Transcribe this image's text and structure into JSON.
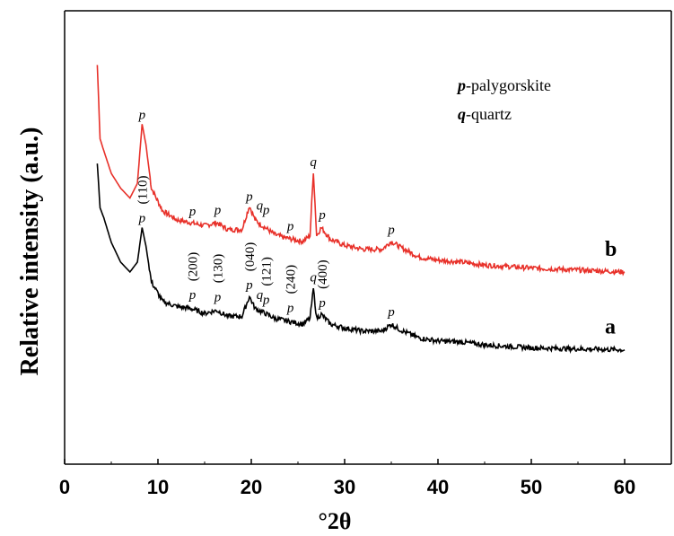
{
  "chart_data": {
    "type": "line",
    "xlabel": "°2θ",
    "ylabel": "Relative intensity (a.u.)",
    "xlim": [
      0,
      65
    ],
    "x_ticks": [
      "0",
      "10",
      "20",
      "30",
      "40",
      "50",
      "60"
    ],
    "grid": false,
    "legend": {
      "placement": "top-right",
      "entries": [
        {
          "key": "p",
          "text": "-palygorskite"
        },
        {
          "key": "q",
          "text": "-quartz"
        }
      ]
    },
    "series": [
      {
        "name": "b",
        "color": "#e8312a",
        "x": [
          3.5,
          3.8,
          4.2,
          5.0,
          6.0,
          7.0,
          7.8,
          8.3,
          8.7,
          9.3,
          10.5,
          12.0,
          13.5,
          15.0,
          16.3,
          17.5,
          19.0,
          19.8,
          20.4,
          21.0,
          21.5,
          22.5,
          23.5,
          24.5,
          25.5,
          26.3,
          26.65,
          27.0,
          27.5,
          28.5,
          30.0,
          32.0,
          34.0,
          35.0,
          36.0,
          38.0,
          40.0,
          42.5,
          45.0,
          50.0,
          55.0,
          60.0
        ],
        "values": [
          405,
          330,
          318,
          295,
          280,
          270,
          285,
          345,
          325,
          280,
          257,
          248,
          245,
          242,
          245,
          238,
          238,
          262,
          248,
          243,
          240,
          233,
          230,
          228,
          226,
          232,
          297,
          232,
          240,
          228,
          222,
          218,
          218,
          226,
          220,
          210,
          207,
          205,
          202,
          199,
          197,
          195
        ]
      },
      {
        "name": "a",
        "color": "#000000",
        "x": [
          3.5,
          3.8,
          4.2,
          5.0,
          6.0,
          7.0,
          7.8,
          8.3,
          8.7,
          9.3,
          10.5,
          12.0,
          13.5,
          15.0,
          16.3,
          17.5,
          19.0,
          19.8,
          20.4,
          21.0,
          21.5,
          22.5,
          23.5,
          24.5,
          25.5,
          26.3,
          26.65,
          27.0,
          27.5,
          28.5,
          30.0,
          32.0,
          34.0,
          35.0,
          36.0,
          38.0,
          40.0,
          42.5,
          45.0,
          50.0,
          55.0,
          60.0
        ],
        "values": [
          305,
          260,
          250,
          225,
          205,
          195,
          205,
          240,
          222,
          185,
          165,
          160,
          158,
          153,
          156,
          150,
          150,
          170,
          158,
          155,
          153,
          148,
          146,
          144,
          142,
          148,
          178,
          148,
          152,
          142,
          138,
          135,
          135,
          142,
          136,
          128,
          125,
          124,
          121,
          118,
          117,
          116
        ]
      }
    ],
    "peak_labels_b": [
      {
        "x": 8.3,
        "y": 345,
        "text": "p"
      },
      {
        "x": 13.7,
        "y": 247,
        "text": "p"
      },
      {
        "x": 16.4,
        "y": 248,
        "text": "p"
      },
      {
        "x": 19.8,
        "y": 262,
        "text": "p"
      },
      {
        "x": 20.9,
        "y": 253,
        "text": "q"
      },
      {
        "x": 21.6,
        "y": 248,
        "text": "p"
      },
      {
        "x": 24.2,
        "y": 232,
        "text": "p"
      },
      {
        "x": 26.65,
        "y": 297,
        "text": "q"
      },
      {
        "x": 27.6,
        "y": 243,
        "text": "p"
      },
      {
        "x": 35.0,
        "y": 228,
        "text": "p"
      }
    ],
    "peak_labels_a": [
      {
        "x": 8.3,
        "y": 240,
        "text": "p"
      },
      {
        "x": 13.7,
        "y": 162,
        "text": "p"
      },
      {
        "x": 16.4,
        "y": 160,
        "text": "p"
      },
      {
        "x": 19.8,
        "y": 172,
        "text": "p"
      },
      {
        "x": 20.9,
        "y": 162,
        "text": "q"
      },
      {
        "x": 21.6,
        "y": 157,
        "text": "p"
      },
      {
        "x": 24.2,
        "y": 149,
        "text": "p"
      },
      {
        "x": 26.65,
        "y": 180,
        "text": "q"
      },
      {
        "x": 27.6,
        "y": 154,
        "text": "p"
      },
      {
        "x": 35.0,
        "y": 145,
        "text": "p"
      }
    ],
    "hkl_labels": [
      {
        "x": 8.3,
        "y": 240,
        "text": "(110)"
      },
      {
        "x": 13.7,
        "y": 162,
        "text": "(200)"
      },
      {
        "x": 16.4,
        "y": 160,
        "text": "(130)"
      },
      {
        "x": 19.8,
        "y": 172,
        "text": "(040)"
      },
      {
        "x": 21.6,
        "y": 157,
        "text": "(121)"
      },
      {
        "x": 24.2,
        "y": 149,
        "text": "(240)"
      },
      {
        "x": 27.6,
        "y": 154,
        "text": "(400)"
      }
    ]
  }
}
